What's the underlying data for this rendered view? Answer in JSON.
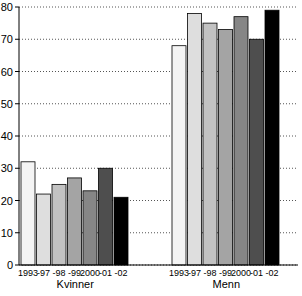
{
  "chart_data": {
    "type": "bar",
    "categories": [
      "Kvinner",
      "Menn"
    ],
    "series": [
      {
        "name": "1993",
        "color": "#f4f4f4",
        "values": [
          32,
          68
        ]
      },
      {
        "name": "-97",
        "color": "#dedede",
        "values": [
          22,
          78
        ]
      },
      {
        "name": "-98",
        "color": "#c2c2c2",
        "values": [
          25,
          75
        ]
      },
      {
        "name": "-99",
        "color": "#a4a4a4",
        "values": [
          27,
          73
        ]
      },
      {
        "name": "2000",
        "color": "#868686",
        "values": [
          23,
          77
        ]
      },
      {
        "name": "-01",
        "color": "#4e4e4e",
        "values": [
          30,
          70
        ]
      },
      {
        "name": "-02",
        "color": "#000000",
        "values": [
          21,
          79
        ]
      }
    ],
    "ylim": [
      0,
      80
    ],
    "yticks": [
      0,
      10,
      20,
      30,
      40,
      50,
      60,
      70,
      80
    ],
    "grid": true
  }
}
